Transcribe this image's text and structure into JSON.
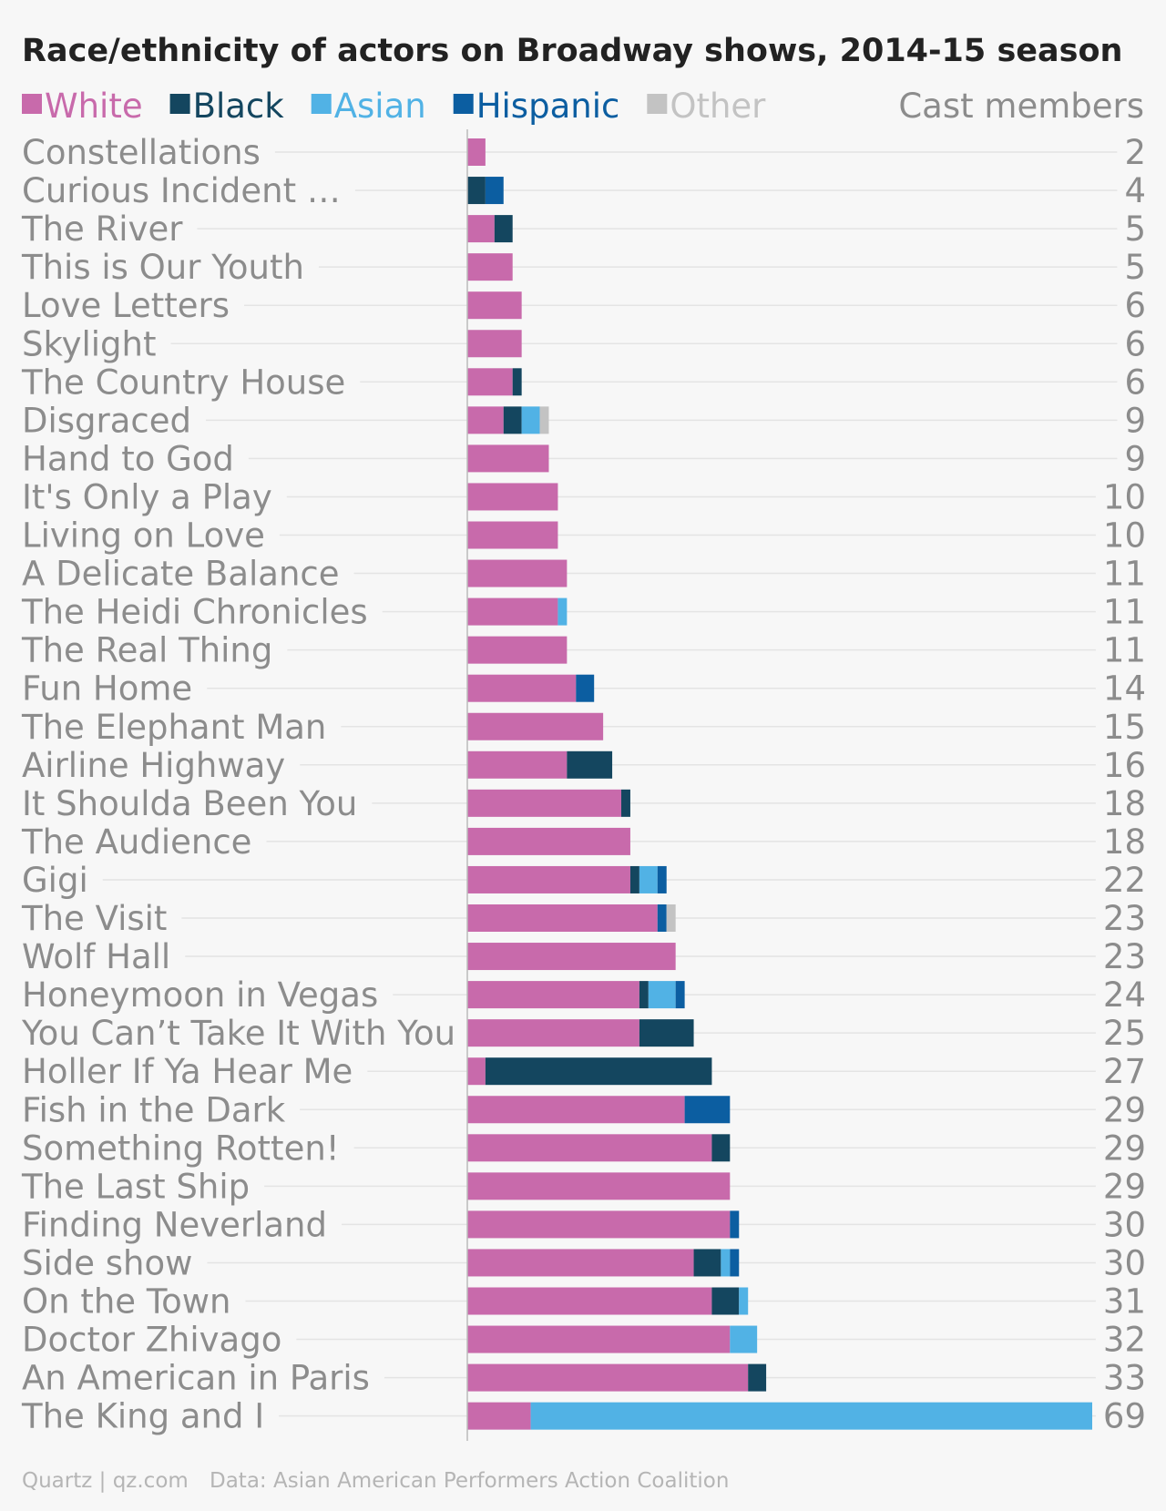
{
  "chart_data": {
    "type": "bar",
    "orientation": "horizontal",
    "stacked": true,
    "title": "Race/ethnicity of actors on Broadway shows, 2014-15 season",
    "right_header": "Cast members",
    "legend_placement": "top-left",
    "grid": true,
    "xlim": [
      0,
      69
    ],
    "categories": [
      "Constellations",
      "Curious Incident …",
      "The River",
      "This is Our Youth",
      "Love Letters",
      "Skylight",
      "The Country House",
      "Disgraced",
      "Hand to God",
      "It's Only a Play",
      "Living on Love",
      "A Delicate Balance",
      "The Heidi Chronicles",
      "The Real Thing",
      "Fun Home",
      "The Elephant Man",
      "Airline Highway",
      "It Shoulda Been You",
      "The Audience",
      "Gigi",
      "The Visit",
      "Wolf Hall",
      "Honeymoon in Vegas",
      "You Can’t Take It With You",
      "Holler If Ya Hear Me",
      "Fish in the Dark",
      "Something Rotten!",
      "The Last Ship",
      "Finding Neverland",
      "Side show",
      "On the Town",
      "Doctor Zhivago",
      "An American in Paris",
      "The King and I"
    ],
    "totals": [
      2,
      4,
      5,
      5,
      6,
      6,
      6,
      9,
      9,
      10,
      10,
      11,
      11,
      11,
      14,
      15,
      16,
      18,
      18,
      22,
      23,
      23,
      24,
      25,
      27,
      29,
      29,
      29,
      30,
      30,
      31,
      32,
      33,
      69
    ],
    "series": [
      {
        "name": "White",
        "color": "#c86aab",
        "values": [
          2,
          0,
          3,
          5,
          6,
          6,
          5,
          4,
          9,
          10,
          10,
          11,
          10,
          11,
          12,
          15,
          11,
          17,
          18,
          18,
          21,
          23,
          19,
          19,
          2,
          24,
          27,
          29,
          29,
          25,
          27,
          29,
          31,
          7
        ]
      },
      {
        "name": "Black",
        "color": "#14465f",
        "values": [
          0,
          2,
          2,
          0,
          0,
          0,
          1,
          2,
          0,
          0,
          0,
          0,
          0,
          0,
          0,
          0,
          5,
          1,
          0,
          1,
          0,
          0,
          1,
          6,
          25,
          0,
          2,
          0,
          0,
          3,
          3,
          0,
          2,
          0
        ]
      },
      {
        "name": "Asian",
        "color": "#51b2e5",
        "values": [
          0,
          0,
          0,
          0,
          0,
          0,
          0,
          2,
          0,
          0,
          0,
          0,
          1,
          0,
          0,
          0,
          0,
          0,
          0,
          2,
          0,
          0,
          3,
          0,
          0,
          0,
          0,
          0,
          0,
          1,
          1,
          3,
          0,
          62
        ]
      },
      {
        "name": "Hispanic",
        "color": "#0c5ea1",
        "values": [
          0,
          2,
          0,
          0,
          0,
          0,
          0,
          0,
          0,
          0,
          0,
          0,
          0,
          0,
          2,
          0,
          0,
          0,
          0,
          1,
          1,
          0,
          1,
          0,
          0,
          5,
          0,
          0,
          1,
          1,
          0,
          0,
          0,
          0
        ]
      },
      {
        "name": "Other",
        "color": "#c3c3c3",
        "values": [
          0,
          0,
          0,
          0,
          0,
          0,
          0,
          1,
          0,
          0,
          0,
          0,
          0,
          0,
          0,
          0,
          0,
          0,
          0,
          0,
          1,
          0,
          0,
          0,
          0,
          0,
          0,
          0,
          0,
          0,
          0,
          0,
          0,
          0
        ]
      }
    ]
  },
  "footer": {
    "credit": "Quartz | qz.com",
    "source": "Data: Asian American Performers Action Coalition"
  },
  "colors": {
    "background": "#f7f7f7",
    "title_text": "#222222",
    "label_text": "#8c8c8c",
    "footer_text": "#b5b5b5",
    "gridline": "#e4e4e4",
    "axis_line": "#bbbbbb"
  }
}
